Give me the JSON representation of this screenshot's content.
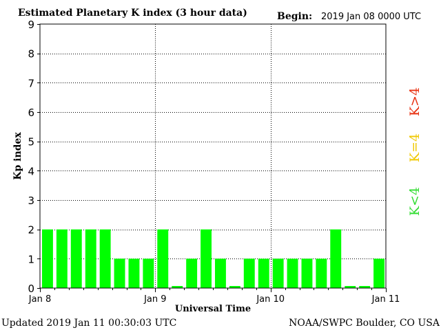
{
  "header": {
    "title": "Estimated Planetary K index (3 hour data)",
    "begin_label": "Begin:",
    "begin_value": "2019 Jan 08 0000 UTC"
  },
  "footer": {
    "updated": "Updated 2019 Jan 11 00:30:03 UTC",
    "source": "NOAA/SWPC Boulder, CO USA"
  },
  "legend": {
    "low": {
      "label": "K<4",
      "color": "#33dd33"
    },
    "mid": {
      "label": "K=4",
      "color": "#f0c800"
    },
    "high": {
      "label": "K>4",
      "color": "#e83010"
    }
  },
  "chart_data": {
    "type": "bar",
    "title": "Estimated Planetary K index (3 hour data)",
    "xlabel": "Universal Time",
    "ylabel": "Kp index",
    "ylim": [
      0,
      9
    ],
    "yticks": [
      "0",
      "1",
      "2",
      "3",
      "4",
      "5",
      "6",
      "7",
      "8",
      "9"
    ],
    "xticks": [
      "Jan 8",
      "Jan 9",
      "Jan 10",
      "Jan 11"
    ],
    "grid": true,
    "bar_color": "#00ff00",
    "interval_hours": 3,
    "values": [
      2,
      2,
      2,
      2,
      2,
      1,
      1,
      1,
      2,
      0,
      1,
      2,
      1,
      0,
      1,
      1,
      1,
      1,
      1,
      1,
      2,
      0,
      0,
      1
    ]
  }
}
